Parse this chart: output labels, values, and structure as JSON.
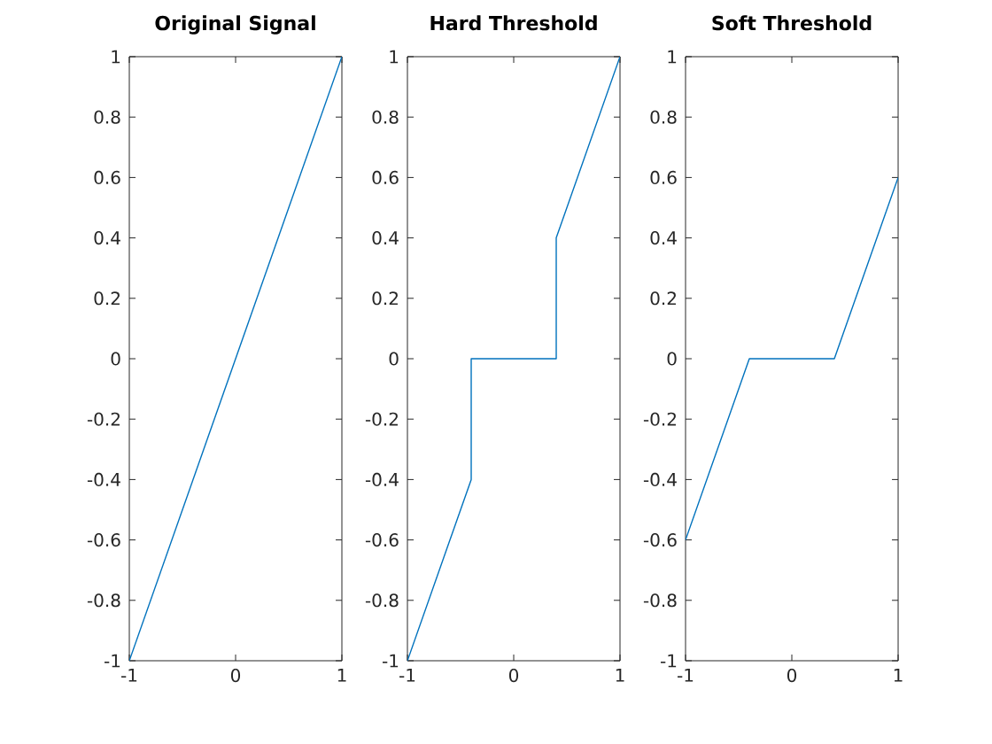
{
  "chart_data": [
    {
      "type": "line",
      "title": "Original Signal",
      "x": [
        -1,
        1
      ],
      "values": [
        -1,
        1
      ],
      "color": "#0072bd",
      "xlim": [
        -1,
        1
      ],
      "ylim": [
        -1,
        1
      ],
      "xticks": [
        -1,
        0,
        1
      ],
      "yticks": [
        -1,
        -0.8,
        -0.6,
        -0.4,
        -0.2,
        0,
        0.2,
        0.4,
        0.6,
        0.8,
        1
      ]
    },
    {
      "type": "line",
      "title": "Hard Threshold",
      "x": [
        -1,
        -0.4,
        -0.4,
        0.4,
        0.4,
        1
      ],
      "values": [
        -1,
        -0.4,
        0,
        0,
        0.4,
        1
      ],
      "color": "#0072bd",
      "xlim": [
        -1,
        1
      ],
      "ylim": [
        -1,
        1
      ],
      "xticks": [
        -1,
        0,
        1
      ],
      "yticks": [
        -1,
        -0.8,
        -0.6,
        -0.4,
        -0.2,
        0,
        0.2,
        0.4,
        0.6,
        0.8,
        1
      ]
    },
    {
      "type": "line",
      "title": "Soft Threshold",
      "x": [
        -1,
        -0.4,
        0.4,
        1
      ],
      "values": [
        -0.6,
        0,
        0,
        0.6
      ],
      "color": "#0072bd",
      "xlim": [
        -1,
        1
      ],
      "ylim": [
        -1,
        1
      ],
      "xticks": [
        -1,
        0,
        1
      ],
      "yticks": [
        -1,
        -0.8,
        -0.6,
        -0.4,
        -0.2,
        0,
        0.2,
        0.4,
        0.6,
        0.8,
        1
      ]
    }
  ]
}
